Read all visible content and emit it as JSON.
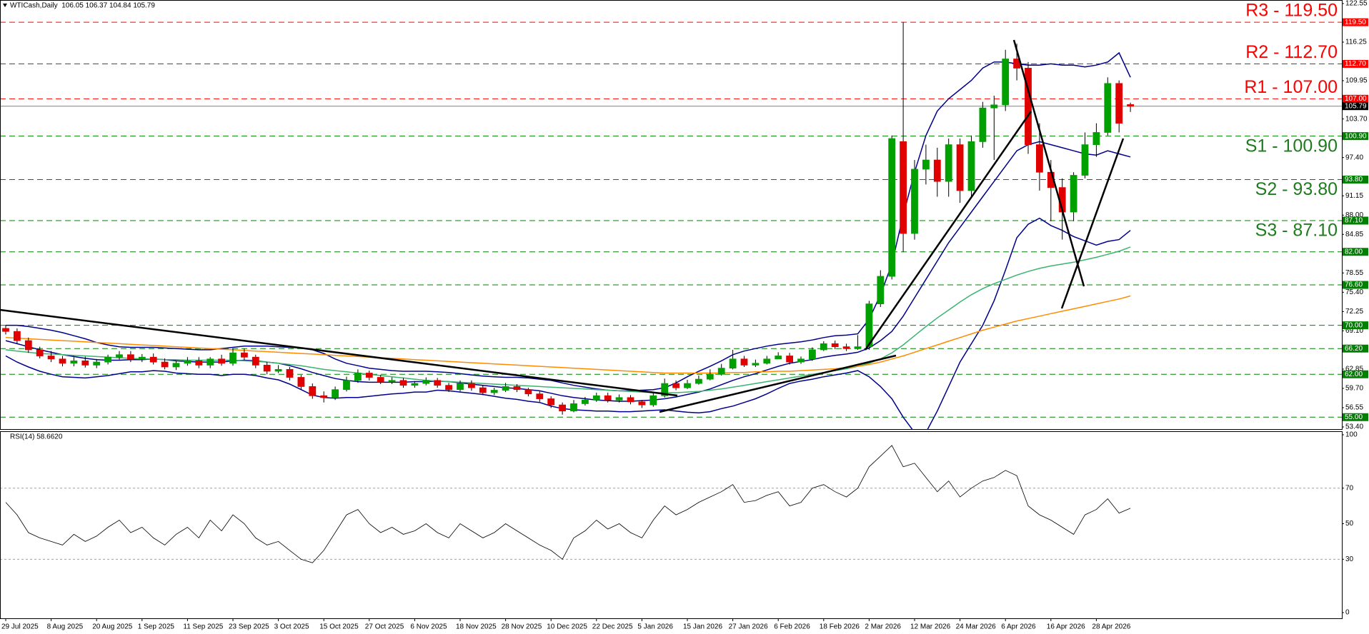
{
  "chart_data": {
    "type": "candlestick",
    "title": "WTICash,Daily  106.05 106.37 104.84 105.79",
    "categories": [
      "29 Jul 2025",
      null,
      null,
      null,
      "8 Aug 2025",
      null,
      null,
      null,
      "20 Aug 2025",
      null,
      null,
      null,
      "1 Sep 2025",
      null,
      null,
      null,
      "11 Sep 2025",
      null,
      null,
      null,
      "23 Sep 2025",
      null,
      null,
      null,
      "3 Oct 2025",
      null,
      null,
      null,
      "15 Oct 2025",
      null,
      null,
      null,
      "27 Oct 2025",
      null,
      null,
      null,
      "6 Nov 2025",
      null,
      null,
      null,
      "18 Nov 2025",
      null,
      null,
      null,
      "28 Nov 2025",
      null,
      null,
      null,
      "10 Dec 2025",
      null,
      null,
      null,
      "22 Dec 2025",
      null,
      null,
      null,
      "5 Jan 2026",
      null,
      null,
      null,
      "15 Jan 2026",
      null,
      null,
      null,
      "27 Jan 2026",
      null,
      null,
      null,
      "6 Feb 2026",
      null,
      null,
      null,
      "18 Feb 2026",
      null,
      null,
      null,
      "2 Mar 2026",
      null,
      null,
      null,
      "12 Mar 2026",
      null,
      null,
      null,
      "24 Mar 2026",
      null,
      null,
      null,
      "6 Apr 2026",
      null,
      null,
      null,
      "16 Apr 2026",
      null,
      null,
      null,
      "28 Apr 2026",
      null,
      null,
      null
    ],
    "open": [
      69.5,
      69,
      67.5,
      66,
      65,
      64.5,
      63.8,
      64.2,
      63.5,
      64,
      64.8,
      65.2,
      64.5,
      64.8,
      64,
      63.2,
      63.8,
      64.2,
      63.5,
      64.5,
      63.8,
      65.5,
      64.8,
      63.5,
      62.5,
      62.8,
      61.5,
      60,
      58.5,
      58.2,
      59.5,
      61,
      62.2,
      61.5,
      60.8,
      61,
      60.2,
      60.5,
      61,
      60.2,
      59.5,
      60.5,
      59.8,
      59,
      59.4,
      60,
      59.5,
      58.8,
      58,
      57,
      56,
      57.2,
      57.8,
      58.5,
      57.8,
      58.2,
      57.5,
      57,
      58.5,
      60.5,
      59.8,
      60.5,
      61.2,
      62,
      63,
      64.5,
      63.5,
      63.8,
      64.5,
      65,
      64,
      64.5,
      66,
      67,
      66.5,
      66.2,
      66.5,
      73.5,
      78,
      100,
      85,
      95.5,
      97,
      93.5,
      99.5,
      92,
      100,
      105.5,
      106,
      113.5,
      112,
      99.5,
      95,
      92.5,
      88.5,
      94.5,
      99.5,
      101.5,
      109.5,
      106.05
    ],
    "high": [
      70,
      69.5,
      68,
      66.5,
      65.8,
      65,
      64.8,
      64.9,
      64.5,
      65.2,
      65.8,
      65.8,
      65.3,
      65.4,
      64.6,
      64.2,
      64.8,
      64.8,
      64.8,
      65.2,
      66.2,
      66.2,
      65.2,
      64,
      63.5,
      63.2,
      61.9,
      60.5,
      59.2,
      60,
      61.6,
      62.8,
      62.6,
      61.9,
      61.5,
      61.4,
      60.9,
      61.5,
      61.4,
      60.6,
      61,
      61,
      60.2,
      59.8,
      60.6,
      60.4,
      59.8,
      59.2,
      58.4,
      57.4,
      57.8,
      58.3,
      59,
      59,
      58.7,
      58.6,
      57.8,
      59,
      61.3,
      61,
      61.1,
      61.8,
      62.8,
      63.7,
      66,
      65,
      64.4,
      65,
      65.6,
      65.5,
      64.9,
      66.4,
      67.4,
      67.5,
      67,
      68.4,
      74,
      79,
      101,
      119.5,
      97,
      99.5,
      99,
      100.5,
      100.5,
      101,
      106.5,
      107.5,
      115,
      116,
      113,
      103,
      97,
      94,
      95,
      101.5,
      103,
      110.5,
      110,
      106.37
    ],
    "low": [
      68.5,
      67,
      65.5,
      64.6,
      64,
      63.3,
      63.3,
      63.1,
      63,
      63.6,
      64.4,
      64,
      64,
      63.6,
      62.8,
      62.7,
      63.4,
      63,
      63,
      63.4,
      63.4,
      64.3,
      63,
      62,
      62.2,
      61,
      59.5,
      58,
      57.4,
      57.8,
      59.2,
      60.6,
      61,
      60.4,
      60.4,
      59.8,
      59.8,
      60.2,
      59.8,
      59.1,
      59.2,
      59.3,
      58.6,
      58.6,
      59.1,
      59.1,
      58.4,
      57.5,
      56.5,
      55.4,
      55.8,
      56.9,
      57.5,
      57.4,
      57.4,
      57.1,
      56.5,
      56.7,
      58.2,
      59.4,
      59.6,
      60.3,
      61,
      61.8,
      62.8,
      63.2,
      63.2,
      63.6,
      64.5,
      63.6,
      63.7,
      64.2,
      65.8,
      66.1,
      65.8,
      66,
      66,
      73,
      77.5,
      82,
      84,
      93,
      91,
      91,
      90,
      91,
      99,
      97,
      105,
      110,
      98,
      92,
      87,
      84,
      87,
      94,
      97.5,
      101,
      101.5,
      104.84
    ],
    "close": [
      69,
      67.5,
      66,
      65,
      64.5,
      63.8,
      64.2,
      63.5,
      64,
      64.8,
      65.2,
      64.5,
      64.8,
      64,
      63.2,
      63.8,
      64.2,
      63.5,
      64.5,
      63.8,
      65.5,
      64.8,
      63.5,
      62.5,
      62.8,
      61.5,
      60,
      58.5,
      58.2,
      59.5,
      61,
      62.2,
      61.5,
      60.8,
      61,
      60.2,
      60.5,
      61,
      60.2,
      59.5,
      60.5,
      59.8,
      59,
      59.4,
      60,
      59.5,
      58.8,
      58,
      57,
      56,
      57.2,
      57.8,
      58.5,
      57.8,
      58.2,
      57.5,
      57,
      58.5,
      60.5,
      59.8,
      60.5,
      61.2,
      62,
      63,
      64.5,
      63.5,
      63.8,
      64.5,
      65,
      64,
      64.5,
      66,
      67,
      66.5,
      66.2,
      66.5,
      73.5,
      78,
      100.5,
      85,
      95.5,
      97,
      93.5,
      99.5,
      92,
      100,
      105.5,
      106,
      113.5,
      112,
      99.5,
      95,
      92.5,
      88.5,
      94.5,
      99.5,
      101.5,
      109.5,
      103,
      105.79
    ],
    "up_color": "#00a000",
    "down_color": "#e00000",
    "wick_color": "#000000",
    "ylim": [
      53.05,
      123.13
    ],
    "yticks": [
      122.55,
      116.25,
      109.95,
      {
        "value": 103.7,
        "label": "103.70"
      },
      {
        "value": 97.4,
        "label": "97.40"
      },
      91.15,
      {
        "value": 88,
        "label": "88.00"
      },
      84.85,
      78.55,
      {
        "value": 75.4,
        "label": "75.40"
      },
      72.25,
      {
        "value": 69.1,
        "label": "69.10"
      },
      62.85,
      {
        "value": 59.7,
        "label": "59.70"
      },
      56.55,
      {
        "value": 53.4,
        "label": "53.40"
      }
    ],
    "series": [
      {
        "color": "#00008b",
        "values": [
          70,
          70,
          69.8,
          69.5,
          69.2,
          68.8,
          68.3,
          67.8,
          67.2,
          66.8,
          66.5,
          66.4,
          66.4,
          66.4,
          66.3,
          66.2,
          66.1,
          66,
          66,
          66.2,
          66.4,
          66.6,
          66.6,
          66.6,
          66.5,
          66.4,
          66.3,
          66,
          65.4,
          64.5,
          63.8,
          63.4,
          63,
          62.8,
          62.6,
          62.5,
          62.5,
          62.5,
          62.4,
          62.3,
          62.1,
          61.9,
          61.7,
          61.6,
          61.5,
          61.5,
          61.4,
          61.2,
          61,
          60.6,
          60.2,
          59.9,
          59.6,
          59.4,
          59.3,
          59.3,
          59.4,
          59.5,
          59.8,
          60.6,
          61.6,
          62.5,
          63.3,
          64.2,
          65.2,
          65.8,
          66.2,
          66.6,
          66.9,
          67.1,
          67.3,
          67.6,
          68,
          68.3,
          68.4,
          68.6,
          71,
          75,
          80,
          88,
          95,
          101,
          105,
          107,
          108.5,
          110,
          112,
          113,
          113,
          112.7,
          112.5,
          112.5,
          112.7,
          112.5,
          112.5,
          112.2,
          112.5,
          113,
          114.5,
          110.5
        ]
      },
      {
        "color": "#00008b",
        "values": [
          67.5,
          67,
          66.5,
          66,
          65.6,
          65.2,
          64.9,
          64.6,
          64.4,
          64.3,
          64.3,
          64.4,
          64.4,
          64.5,
          64.4,
          64.2,
          64.1,
          64,
          64,
          64,
          64.2,
          64.3,
          64.2,
          64,
          63.8,
          63.4,
          62.9,
          62.3,
          61.8,
          61.3,
          61,
          60.8,
          60.7,
          60.7,
          60.7,
          60.7,
          60.8,
          60.8,
          60.9,
          60.8,
          60.6,
          60.4,
          60.2,
          60,
          59.8,
          59.7,
          59.5,
          59.3,
          58.9,
          58.5,
          58.2,
          58,
          57.8,
          57.7,
          57.6,
          57.6,
          57.7,
          57.8,
          58,
          58.3,
          58.7,
          59.1,
          59.6,
          60.3,
          61,
          61.6,
          62.1,
          62.7,
          63.3,
          63.8,
          64.1,
          64.4,
          64.8,
          65.1,
          65.3,
          65.6,
          66.3,
          67.5,
          69,
          71.5,
          74.5,
          77.5,
          80.5,
          83.5,
          86,
          88.5,
          91,
          93.5,
          96,
          98.5,
          99.5,
          100,
          99.5,
          99,
          98.5,
          98,
          97.8,
          98.5,
          98,
          97.5
        ]
      },
      {
        "color": "#00008b",
        "values": [
          65,
          64,
          63.2,
          62.5,
          62,
          61.6,
          61.5,
          61.4,
          61.6,
          61.8,
          62.1,
          62.4,
          62.4,
          62.6,
          62.5,
          62.2,
          62.1,
          62,
          62,
          61.8,
          62,
          62,
          61.8,
          61.4,
          61.1,
          60.4,
          59.5,
          58.6,
          58.2,
          58.1,
          58.2,
          58.2,
          58.4,
          58.6,
          58.8,
          58.9,
          59.1,
          59.1,
          59.4,
          59.3,
          59.1,
          58.9,
          58.7,
          58.4,
          58.1,
          57.9,
          57.6,
          57.4,
          56.8,
          56.4,
          56.2,
          56.1,
          56,
          56,
          55.9,
          55.9,
          56,
          56.1,
          56.2,
          56,
          55.8,
          55.7,
          55.9,
          56.4,
          56.8,
          57.4,
          58,
          58.8,
          59.7,
          60.5,
          60.9,
          61.2,
          61.6,
          61.9,
          62.2,
          62.6,
          61.6,
          60,
          58,
          55,
          52.5,
          52.5,
          56,
          60,
          64,
          67,
          70,
          74,
          79,
          84.3,
          86.5,
          87.5,
          86.3,
          85.5,
          84.5,
          83.8,
          83.1,
          83.7,
          84,
          85.5
        ]
      },
      {
        "color": "#3cb371",
        "values": [
          66,
          65.8,
          65.6,
          65.4,
          65.3,
          65.2,
          65.1,
          65,
          64.9,
          64.8,
          64.7,
          64.6,
          64.5,
          64.5,
          64.4,
          64.4,
          64.3,
          64.3,
          64.3,
          64.3,
          64.3,
          64.2,
          64.1,
          64,
          63.8,
          63.6,
          63.4,
          63.1,
          62.8,
          62.6,
          62.4,
          62.2,
          62,
          61.8,
          61.6,
          61.4,
          61.2,
          61,
          60.9,
          60.8,
          60.7,
          60.6,
          60.5,
          60.4,
          60.3,
          60.2,
          60.1,
          60,
          59.9,
          59.8,
          59.7,
          59.6,
          59.5,
          59.4,
          59.3,
          59.2,
          59.1,
          59,
          59,
          59,
          59.1,
          59.2,
          59.4,
          59.6,
          59.9,
          60.2,
          60.5,
          60.8,
          61.1,
          61.4,
          61.7,
          62,
          62.3,
          62.6,
          62.9,
          63.3,
          63.8,
          64.5,
          65.5,
          66.8,
          68.3,
          69.8,
          71.2,
          72.5,
          73.8,
          75,
          76,
          76.8,
          77.5,
          78.2,
          78.8,
          79.3,
          79.7,
          80,
          80.3,
          80.7,
          81.1,
          81.6,
          82.1,
          82.8
        ]
      },
      {
        "color": "#ff8c00",
        "values": [
          68,
          67.9,
          67.8,
          67.7,
          67.6,
          67.5,
          67.4,
          67.3,
          67.2,
          67.1,
          67,
          66.9,
          66.8,
          66.7,
          66.6,
          66.5,
          66.4,
          66.3,
          66.2,
          66.1,
          66,
          65.9,
          65.8,
          65.7,
          65.6,
          65.5,
          65.4,
          65.3,
          65.2,
          65.1,
          65,
          64.9,
          64.8,
          64.7,
          64.6,
          64.5,
          64.4,
          64.3,
          64.2,
          64.1,
          64,
          63.9,
          63.8,
          63.7,
          63.6,
          63.5,
          63.4,
          63.3,
          63.2,
          63.1,
          63,
          62.9,
          62.8,
          62.7,
          62.6,
          62.5,
          62.4,
          62.3,
          62.2,
          62.2,
          62.2,
          62.2,
          62.2,
          62.2,
          62.3,
          62.3,
          62.4,
          62.4,
          62.5,
          62.5,
          62.6,
          62.7,
          62.8,
          62.9,
          63.1,
          63.3,
          63.6,
          64,
          64.5,
          65,
          65.6,
          66.2,
          66.8,
          67.4,
          68,
          68.6,
          69.2,
          69.7,
          70.2,
          70.7,
          71.1,
          71.5,
          71.9,
          72.3,
          72.7,
          73.1,
          73.5,
          73.9,
          74.3,
          74.8
        ]
      }
    ],
    "levels": [
      {
        "value": 119.5,
        "label": "119.50",
        "color": "#ff0000",
        "annotation": "R3 - 119.50"
      },
      {
        "value": 112.7,
        "label": "112.70",
        "color": "#ff0000",
        "annotation": "R2 - 112.70"
      },
      {
        "value": 107,
        "label": "107.00",
        "color": "#ff0000",
        "annotation": "R1 - 107.00"
      },
      {
        "value": 100.9,
        "label": "100.90",
        "color": "#008000",
        "annotation": "S1 - 100.90"
      },
      {
        "value": 93.8,
        "label": "93.80",
        "color": "#008000",
        "annotation": "S2 - 93.80"
      },
      {
        "value": 87.1,
        "label": "87.10",
        "color": "#008000",
        "annotation": "S3 - 87.10"
      },
      {
        "value": 82,
        "label": "82.00",
        "color": "#008000"
      },
      {
        "value": 76.6,
        "label": "76.60",
        "color": "#008000"
      },
      {
        "value": 70,
        "label": "70.00",
        "color": "#008000"
      },
      {
        "value": 66.2,
        "label": "66.20",
        "color": "#008000"
      },
      {
        "value": 62,
        "label": "62.00",
        "color": "#008000"
      },
      {
        "value": 55,
        "label": "55.00",
        "color": "#008000"
      }
    ],
    "price_line": {
      "value": 105.79,
      "label": "105.79",
      "color": "#808080"
    },
    "rsi": {
      "label": "RSI(14) 58.6620",
      "color": "#000000",
      "ylim": [
        -3.2,
        102
      ],
      "yticks": [
        100,
        70,
        50,
        30,
        0
      ],
      "levels": [
        70,
        30
      ],
      "values": [
        62,
        55,
        45,
        42,
        40,
        38,
        44,
        40,
        43,
        48,
        52,
        45,
        48,
        42,
        38,
        44,
        48,
        42,
        52,
        46,
        55,
        50,
        42,
        38,
        40,
        35,
        30,
        28,
        35,
        45,
        55,
        58,
        50,
        45,
        48,
        44,
        46,
        50,
        45,
        42,
        50,
        46,
        42,
        45,
        50,
        46,
        42,
        38,
        35,
        30,
        42,
        46,
        52,
        47,
        50,
        45,
        42,
        52,
        60,
        55,
        58,
        62,
        65,
        68,
        72,
        62,
        63,
        66,
        68,
        60,
        62,
        70,
        72,
        68,
        65,
        70,
        82,
        88,
        94,
        82,
        84,
        76,
        68,
        74,
        65,
        70,
        74,
        76,
        80,
        77,
        60,
        55,
        52,
        48,
        44,
        55,
        58,
        64,
        56,
        58.662
      ]
    }
  }
}
